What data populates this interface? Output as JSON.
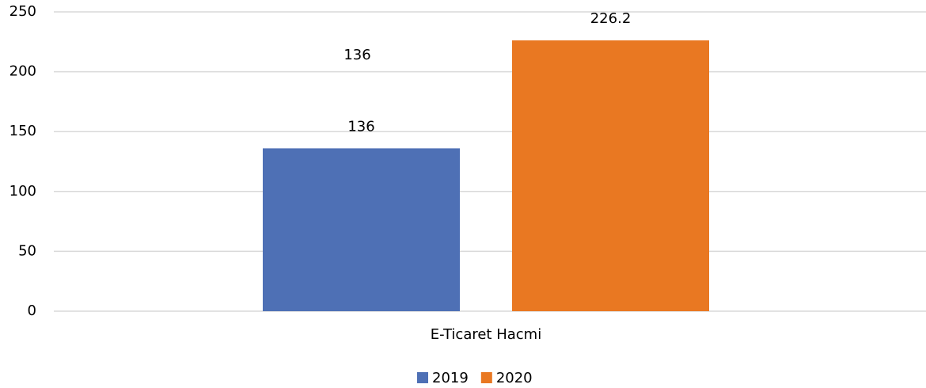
{
  "chart_data": {
    "type": "bar",
    "categories": [
      "E-Ticaret Hacmi"
    ],
    "series": [
      {
        "name": "2019",
        "color": "#4e70b5",
        "values": [
          136
        ]
      },
      {
        "name": "2020",
        "color": "#e97822",
        "values": [
          226.2
        ]
      }
    ],
    "annotations": [
      "136"
    ],
    "ylim": [
      0,
      250
    ],
    "yticks": [
      0,
      50,
      100,
      150,
      200,
      250
    ],
    "grid": true,
    "legend": "bottom"
  }
}
